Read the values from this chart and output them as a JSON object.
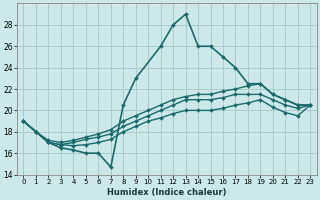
{
  "xlabel": "Humidex (Indice chaleur)",
  "bg_color": "#cce8e8",
  "grid_color": "#aacccc",
  "line_color": "#1a6b6b",
  "ylim": [
    14,
    30
  ],
  "xlim": [
    -0.5,
    23.5
  ],
  "yticks": [
    14,
    16,
    18,
    20,
    22,
    24,
    26,
    28
  ],
  "xticks": [
    0,
    1,
    2,
    3,
    4,
    5,
    6,
    7,
    8,
    9,
    10,
    11,
    12,
    13,
    14,
    15,
    16,
    17,
    18,
    19,
    20,
    21,
    22,
    23
  ],
  "series": [
    {
      "x": [
        0,
        1,
        2,
        3,
        4,
        5,
        6,
        7,
        8,
        9,
        11,
        12,
        13,
        14,
        15,
        16,
        17,
        18,
        19,
        20,
        21,
        22,
        23
      ],
      "y": [
        19.0,
        18.0,
        17.0,
        16.5,
        16.3,
        16.0,
        16.0,
        14.7,
        20.5,
        23.0,
        26.0,
        28.0,
        29.0,
        26.0,
        26.0,
        25.0,
        24.0,
        22.5,
        22.5,
        21.5,
        21.0,
        20.5,
        20.5
      ],
      "linewidth": 1.2
    },
    {
      "x": [
        0,
        1,
        2,
        3,
        4,
        5,
        6,
        7,
        8,
        9,
        10,
        11,
        12,
        13,
        14,
        15,
        16,
        17,
        18,
        19,
        20,
        21,
        22,
        23
      ],
      "y": [
        19.0,
        18.0,
        17.2,
        17.0,
        17.2,
        17.5,
        17.8,
        18.2,
        19.0,
        19.5,
        20.0,
        20.5,
        21.0,
        21.3,
        21.5,
        21.5,
        21.8,
        22.0,
        22.3,
        22.5,
        21.5,
        21.0,
        20.5,
        20.5
      ],
      "linewidth": 1.0
    },
    {
      "x": [
        0,
        1,
        2,
        3,
        4,
        5,
        6,
        7,
        8,
        9,
        10,
        11,
        12,
        13,
        14,
        15,
        16,
        17,
        18,
        19,
        20,
        21,
        22,
        23
      ],
      "y": [
        19.0,
        18.0,
        17.0,
        16.8,
        17.0,
        17.3,
        17.5,
        17.8,
        18.5,
        19.0,
        19.5,
        20.0,
        20.5,
        21.0,
        21.0,
        21.0,
        21.2,
        21.5,
        21.5,
        21.5,
        21.0,
        20.5,
        20.2,
        20.5
      ],
      "linewidth": 1.0
    },
    {
      "x": [
        0,
        1,
        2,
        3,
        4,
        5,
        6,
        7,
        8,
        9,
        10,
        11,
        12,
        13,
        14,
        15,
        16,
        17,
        18,
        19,
        20,
        21,
        22,
        23
      ],
      "y": [
        19.0,
        18.0,
        17.0,
        16.8,
        16.7,
        16.8,
        17.0,
        17.3,
        18.0,
        18.5,
        19.0,
        19.3,
        19.7,
        20.0,
        20.0,
        20.0,
        20.2,
        20.5,
        20.7,
        21.0,
        20.3,
        19.8,
        19.5,
        20.5
      ],
      "linewidth": 1.0
    }
  ]
}
